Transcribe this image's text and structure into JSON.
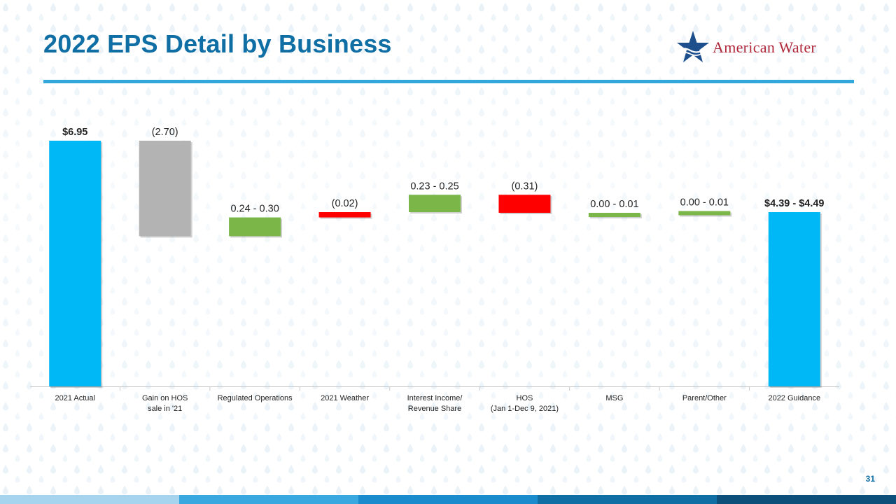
{
  "page": {
    "title": "2022 EPS Detail by Business",
    "logo_text": "American Water",
    "page_number": "31"
  },
  "colors": {
    "title": "#0f6ea4",
    "rule": "#32a7dc",
    "total": "#00b8f5",
    "gain_removed": "#b3b3b3",
    "increase": "#7ab648",
    "decrease": "#ff0000",
    "footer": [
      "#a6d4ef",
      "#3aa8e0",
      "#1a8bcc",
      "#0f6ea4",
      "#0b4f7a"
    ]
  },
  "chart_data": {
    "type": "waterfall",
    "title": "",
    "ylim": [
      0,
      7.5
    ],
    "grid": false,
    "categories": [
      [
        "2021 Actual"
      ],
      [
        "Gain on HOS",
        "sale in '21"
      ],
      [
        "Regulated Operations"
      ],
      [
        "2021 Weather"
      ],
      [
        "Interest Income/",
        "Revenue Share"
      ],
      [
        "HOS",
        "(Jan 1-Dec 9, 2021)"
      ],
      [
        "MSG"
      ],
      [
        "Parent/Other"
      ],
      [
        "2022 Guidance"
      ]
    ],
    "bars": [
      {
        "kind": "total",
        "low": 0,
        "high": 6.95,
        "label": "$6.95",
        "bold": true
      },
      {
        "kind": "gain_removed",
        "low": 4.25,
        "high": 6.95,
        "label": "(2.70)",
        "bold": false
      },
      {
        "kind": "increase",
        "low": 4.25,
        "high": 4.78,
        "label": "0.24 - 0.30",
        "bold": false
      },
      {
        "kind": "decrease",
        "low": 4.78,
        "high": 4.93,
        "label": "(0.02)",
        "bold": false
      },
      {
        "kind": "increase",
        "low": 4.93,
        "high": 5.42,
        "label": "0.23 - 0.25",
        "bold": false
      },
      {
        "kind": "decrease",
        "low": 4.91,
        "high": 5.42,
        "label": "(0.31)",
        "bold": false
      },
      {
        "kind": "increase",
        "low": 4.8,
        "high": 4.91,
        "label": "0.00 - 0.01",
        "bold": false
      },
      {
        "kind": "increase",
        "low": 4.85,
        "high": 4.96,
        "label": "0.00 - 0.01",
        "bold": false
      },
      {
        "kind": "total",
        "low": 0,
        "high": 4.93,
        "label": "$4.39 - $4.49",
        "bold": true
      }
    ]
  }
}
